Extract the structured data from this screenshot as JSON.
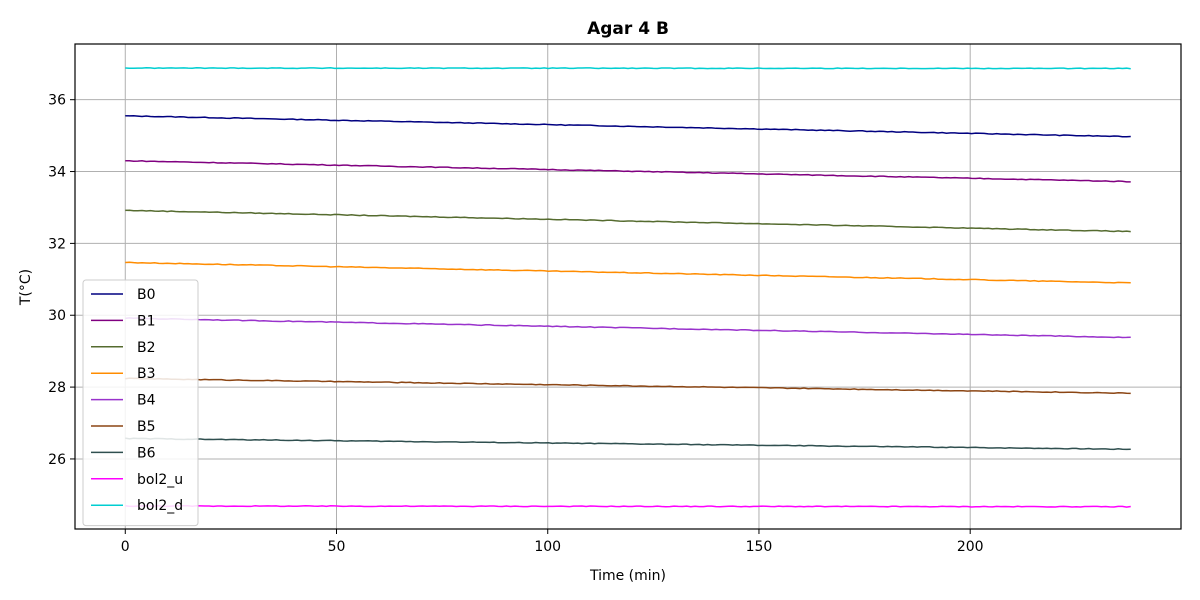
{
  "chart_data": {
    "type": "line",
    "title": "Agar 4 B",
    "xlabel": "Time (min)",
    "ylabel": "T(°C)",
    "xlim": [
      -11.9,
      249.9
    ],
    "ylim": [
      24.05,
      37.55
    ],
    "xticks": [
      0,
      50,
      100,
      150,
      200
    ],
    "yticks": [
      26,
      28,
      30,
      32,
      34,
      36
    ],
    "grid": true,
    "legend_position": "lower-left",
    "x_start": 0,
    "x_end": 238,
    "series": [
      {
        "name": "B0",
        "color": "#000080",
        "start": 35.55,
        "end": 34.97
      },
      {
        "name": "B1",
        "color": "#800080",
        "start": 34.3,
        "end": 33.72
      },
      {
        "name": "B2",
        "color": "#556b2f",
        "start": 32.92,
        "end": 32.33
      },
      {
        "name": "B3",
        "color": "#ff8c00",
        "start": 31.47,
        "end": 30.9
      },
      {
        "name": "B4",
        "color": "#9932cc",
        "start": 29.92,
        "end": 29.38
      },
      {
        "name": "B5",
        "color": "#8b4513",
        "start": 28.24,
        "end": 27.83
      },
      {
        "name": "B6",
        "color": "#2f4f4f",
        "start": 26.57,
        "end": 26.27
      },
      {
        "name": "bol2_u",
        "color": "#ff00ff",
        "start": 24.69,
        "end": 24.67
      },
      {
        "name": "bol2_d",
        "color": "#00ced1",
        "start": 36.88,
        "end": 36.87
      }
    ]
  }
}
